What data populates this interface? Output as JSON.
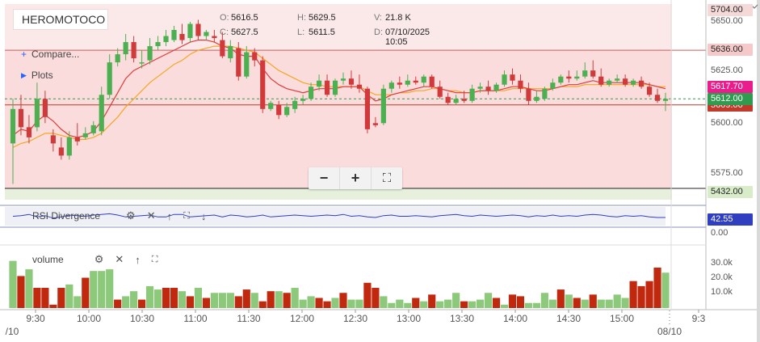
{
  "symbol": "HEROMOTOCO",
  "ohlc": {
    "o_label": "O:",
    "o": "5616.5",
    "h_label": "H:",
    "h": "5629.5",
    "v_label": "V:",
    "v": "21.8 K",
    "c_label": "C:",
    "c": "5627.5",
    "l_label": "L:",
    "l": "5611.5",
    "d_label": "D:",
    "d": "07/10/2025 10:05"
  },
  "menu": {
    "compare": "Compare...",
    "plots": "Plots"
  },
  "zoom": {
    "out": "−",
    "in": "+",
    "fit": "⛶"
  },
  "studies": {
    "rsi": "RSI Divergence",
    "rsi_value": "42.55",
    "rsi_zero": "0.00",
    "volume": "volume"
  },
  "price_axis": [
    "5650.00",
    "5625.00",
    "5600.00",
    "5575.00"
  ],
  "volume_axis": [
    "30.0k",
    "20.0k",
    "10.0k"
  ],
  "price_tags": {
    "high": "5704.00",
    "band_top": "5636.00",
    "ma": "5617.70",
    "last": "5612.00",
    "band_mid": "5609.00",
    "band_low": "5432.00"
  },
  "time_axis": [
    "9:30",
    "10:00",
    "10:30",
    "11:00",
    "11:30",
    "12:00",
    "12:30",
    "13:00",
    "13:30",
    "14:00",
    "14:30",
    "15:00",
    "9:3"
  ],
  "date_labels": {
    "left": "/10",
    "right": "08/10"
  },
  "colors": {
    "up": "#4caf50",
    "down": "#d03a3a",
    "band_fill": "#fbdcdc",
    "ma_red": "#e03a3a",
    "ma_orange": "#f5a623",
    "vol_up": "#8cc97a",
    "vol_down": "#c1290e",
    "rsi_line": "#2f3fbf",
    "ma_tag": "#e91e8c",
    "last_tag": "#2e9b4e"
  },
  "chart_data": {
    "type": "candlestick",
    "interval_minutes": 5,
    "y_range": [
      5568,
      5652
    ],
    "candles": [
      {
        "o": 5590,
        "h": 5612,
        "c": 5607,
        "l": 5570
      },
      {
        "o": 5607,
        "h": 5614,
        "c": 5598,
        "l": 5594
      },
      {
        "o": 5598,
        "h": 5604,
        "c": 5593,
        "l": 5590
      },
      {
        "o": 5598,
        "h": 5620,
        "c": 5612,
        "l": 5596
      },
      {
        "o": 5612,
        "h": 5616,
        "c": 5603,
        "l": 5600
      },
      {
        "o": 5594,
        "h": 5597,
        "c": 5590,
        "l": 5586
      },
      {
        "o": 5588,
        "h": 5593,
        "c": 5584,
        "l": 5582
      },
      {
        "o": 5584,
        "h": 5596,
        "c": 5593,
        "l": 5582
      },
      {
        "o": 5593,
        "h": 5600,
        "c": 5591,
        "l": 5589
      },
      {
        "o": 5593,
        "h": 5598,
        "c": 5595,
        "l": 5592
      },
      {
        "o": 5595,
        "h": 5601,
        "c": 5599,
        "l": 5594
      },
      {
        "o": 5596,
        "h": 5618,
        "c": 5614,
        "l": 5594
      },
      {
        "o": 5614,
        "h": 5634,
        "c": 5630,
        "l": 5612
      },
      {
        "o": 5630,
        "h": 5637,
        "c": 5634,
        "l": 5628
      },
      {
        "o": 5634,
        "h": 5644,
        "c": 5640,
        "l": 5631
      },
      {
        "o": 5640,
        "h": 5643,
        "c": 5632,
        "l": 5630
      },
      {
        "o": 5630,
        "h": 5636,
        "c": 5630,
        "l": 5627
      },
      {
        "o": 5631,
        "h": 5642,
        "c": 5638,
        "l": 5629
      },
      {
        "o": 5638,
        "h": 5643,
        "c": 5640,
        "l": 5636
      },
      {
        "o": 5640,
        "h": 5646,
        "c": 5643,
        "l": 5638
      },
      {
        "o": 5641,
        "h": 5648,
        "c": 5646,
        "l": 5640
      },
      {
        "o": 5644,
        "h": 5649,
        "c": 5641,
        "l": 5639
      },
      {
        "o": 5642,
        "h": 5650,
        "c": 5649,
        "l": 5640
      },
      {
        "o": 5649,
        "h": 5651,
        "c": 5643,
        "l": 5641
      },
      {
        "o": 5643,
        "h": 5646,
        "c": 5645,
        "l": 5641
      },
      {
        "o": 5643,
        "h": 5646,
        "c": 5642,
        "l": 5640
      },
      {
        "o": 5641,
        "h": 5645,
        "c": 5633,
        "l": 5632
      },
      {
        "o": 5632,
        "h": 5641,
        "c": 5638,
        "l": 5630
      },
      {
        "o": 5637,
        "h": 5640,
        "c": 5623,
        "l": 5621
      },
      {
        "o": 5623,
        "h": 5638,
        "c": 5635,
        "l": 5622
      },
      {
        "o": 5635,
        "h": 5637,
        "c": 5631,
        "l": 5628
      },
      {
        "o": 5631,
        "h": 5633,
        "c": 5607,
        "l": 5605
      },
      {
        "o": 5607,
        "h": 5611,
        "c": 5610,
        "l": 5606
      },
      {
        "o": 5609,
        "h": 5611,
        "c": 5604,
        "l": 5602
      },
      {
        "o": 5604,
        "h": 5610,
        "c": 5608,
        "l": 5603
      },
      {
        "o": 5607,
        "h": 5613,
        "c": 5611,
        "l": 5605
      },
      {
        "o": 5611,
        "h": 5614,
        "c": 5612,
        "l": 5609
      },
      {
        "o": 5612,
        "h": 5620,
        "c": 5618,
        "l": 5611
      },
      {
        "o": 5618,
        "h": 5624,
        "c": 5621,
        "l": 5616
      },
      {
        "o": 5621,
        "h": 5624,
        "c": 5614,
        "l": 5613
      },
      {
        "o": 5614,
        "h": 5622,
        "c": 5621,
        "l": 5613
      },
      {
        "o": 5621,
        "h": 5625,
        "c": 5622,
        "l": 5619
      },
      {
        "o": 5622,
        "h": 5626,
        "c": 5619,
        "l": 5617
      },
      {
        "o": 5619,
        "h": 5624,
        "c": 5617,
        "l": 5615
      },
      {
        "o": 5617,
        "h": 5618,
        "c": 5597,
        "l": 5595
      },
      {
        "o": 5600,
        "h": 5603,
        "c": 5599,
        "l": 5598
      },
      {
        "o": 5600,
        "h": 5619,
        "c": 5617,
        "l": 5599
      },
      {
        "o": 5617,
        "h": 5621,
        "c": 5620,
        "l": 5615
      },
      {
        "o": 5620,
        "h": 5623,
        "c": 5619,
        "l": 5617
      },
      {
        "o": 5619,
        "h": 5624,
        "c": 5621,
        "l": 5618
      },
      {
        "o": 5621,
        "h": 5623,
        "c": 5620,
        "l": 5619
      },
      {
        "o": 5620,
        "h": 5624,
        "c": 5623,
        "l": 5618
      },
      {
        "o": 5623,
        "h": 5624,
        "c": 5618,
        "l": 5617
      },
      {
        "o": 5618,
        "h": 5621,
        "c": 5613,
        "l": 5612
      },
      {
        "o": 5613,
        "h": 5615,
        "c": 5610,
        "l": 5609
      },
      {
        "o": 5610,
        "h": 5614,
        "c": 5612,
        "l": 5609
      },
      {
        "o": 5612,
        "h": 5616,
        "c": 5611,
        "l": 5610
      },
      {
        "o": 5611,
        "h": 5619,
        "c": 5617,
        "l": 5610
      },
      {
        "o": 5617,
        "h": 5620,
        "c": 5618,
        "l": 5615
      },
      {
        "o": 5618,
        "h": 5621,
        "c": 5616,
        "l": 5614
      },
      {
        "o": 5616,
        "h": 5620,
        "c": 5619,
        "l": 5615
      },
      {
        "o": 5619,
        "h": 5626,
        "c": 5624,
        "l": 5618
      },
      {
        "o": 5624,
        "h": 5627,
        "c": 5621,
        "l": 5619
      },
      {
        "o": 5621,
        "h": 5624,
        "c": 5617,
        "l": 5615
      },
      {
        "o": 5617,
        "h": 5620,
        "c": 5611,
        "l": 5609
      },
      {
        "o": 5611,
        "h": 5616,
        "c": 5613,
        "l": 5610
      },
      {
        "o": 5612,
        "h": 5618,
        "c": 5617,
        "l": 5611
      },
      {
        "o": 5617,
        "h": 5622,
        "c": 5620,
        "l": 5616
      },
      {
        "o": 5620,
        "h": 5624,
        "c": 5623,
        "l": 5619
      },
      {
        "o": 5623,
        "h": 5626,
        "c": 5622,
        "l": 5620
      },
      {
        "o": 5622,
        "h": 5626,
        "c": 5623,
        "l": 5621
      },
      {
        "o": 5623,
        "h": 5630,
        "c": 5626,
        "l": 5622
      },
      {
        "o": 5626,
        "h": 5631,
        "c": 5623,
        "l": 5622
      },
      {
        "o": 5623,
        "h": 5627,
        "c": 5619,
        "l": 5618
      },
      {
        "o": 5619,
        "h": 5622,
        "c": 5621,
        "l": 5618
      },
      {
        "o": 5621,
        "h": 5624,
        "c": 5622,
        "l": 5620
      },
      {
        "o": 5622,
        "h": 5624,
        "c": 5619,
        "l": 5618
      },
      {
        "o": 5619,
        "h": 5622,
        "c": 5621,
        "l": 5618
      },
      {
        "o": 5621,
        "h": 5623,
        "c": 5618,
        "l": 5617
      },
      {
        "o": 5618,
        "h": 5620,
        "c": 5614,
        "l": 5613
      },
      {
        "o": 5614,
        "h": 5617,
        "c": 5611,
        "l": 5610
      },
      {
        "o": 5611,
        "h": 5615,
        "c": 5612,
        "l": 5606
      }
    ],
    "ma_fast": [
      5594,
      5597,
      5596,
      5601,
      5604,
      5601,
      5597,
      5594,
      5593,
      5594,
      5596,
      5601,
      5608,
      5615,
      5622,
      5626,
      5628,
      5630,
      5632,
      5634,
      5636,
      5638,
      5640,
      5641,
      5641,
      5640,
      5638,
      5637,
      5634,
      5633,
      5633,
      5627,
      5622,
      5619,
      5617,
      5616,
      5615,
      5616,
      5617,
      5617,
      5617,
      5618,
      5618,
      5618,
      5614,
      5611,
      5612,
      5614,
      5615,
      5616,
      5617,
      5618,
      5618,
      5617,
      5616,
      5615,
      5615,
      5615,
      5616,
      5616,
      5616,
      5617,
      5618,
      5618,
      5617,
      5616,
      5616,
      5617,
      5618,
      5619,
      5619,
      5620,
      5621,
      5620,
      5620,
      5620,
      5620,
      5620,
      5620,
      5619,
      5618,
      5617
    ],
    "ma_slow": [
      5588,
      5590,
      5591,
      5593,
      5595,
      5595,
      5594,
      5593,
      5592,
      5592,
      5593,
      5595,
      5599,
      5603,
      5608,
      5612,
      5616,
      5620,
      5623,
      5626,
      5629,
      5631,
      5634,
      5636,
      5637,
      5638,
      5638,
      5638,
      5637,
      5636,
      5635,
      5632,
      5629,
      5626,
      5624,
      5622,
      5620,
      5619,
      5619,
      5618,
      5618,
      5618,
      5618,
      5618,
      5616,
      5614,
      5614,
      5614,
      5615,
      5615,
      5616,
      5616,
      5617,
      5617,
      5616,
      5616,
      5615,
      5615,
      5616,
      5616,
      5616,
      5616,
      5617,
      5617,
      5617,
      5617,
      5617,
      5617,
      5618,
      5618,
      5618,
      5619,
      5619,
      5619,
      5619,
      5619,
      5619,
      5619,
      5619,
      5619,
      5618,
      5618
    ],
    "band": {
      "top": 5636,
      "mid": 5609,
      "low": 5432
    },
    "last_price": 5612,
    "ma_value": 5617.7,
    "volume": [
      28,
      19,
      23,
      12,
      12,
      2,
      12,
      14,
      7,
      18,
      22,
      22,
      23,
      5,
      7,
      10,
      5,
      13,
      11,
      12,
      12,
      10,
      7,
      12,
      6,
      9,
      9,
      9,
      7,
      11,
      9,
      4,
      10,
      10,
      9,
      12,
      5,
      7,
      6,
      4,
      6,
      9,
      5,
      5,
      15,
      12,
      7,
      3,
      5,
      3,
      6,
      4,
      8,
      4,
      5,
      9,
      4,
      4,
      5,
      9,
      6,
      2,
      8,
      7,
      3,
      3,
      9,
      5,
      11,
      8,
      6,
      5,
      8,
      5,
      5,
      8,
      6,
      16,
      13,
      16,
      24,
      21
    ],
    "volume_dir": [
      "u",
      "d",
      "u",
      "d",
      "d",
      "d",
      "d",
      "u",
      "u",
      "d",
      "u",
      "u",
      "u",
      "d",
      "u",
      "u",
      "d",
      "u",
      "u",
      "d",
      "d",
      "u",
      "d",
      "u",
      "d",
      "u",
      "u",
      "u",
      "d",
      "d",
      "u",
      "d",
      "d",
      "u",
      "d",
      "u",
      "u",
      "u",
      "d",
      "d",
      "u",
      "d",
      "u",
      "u",
      "d",
      "d",
      "u",
      "u",
      "u",
      "u",
      "d",
      "u",
      "d",
      "u",
      "u",
      "u",
      "d",
      "u",
      "u",
      "u",
      "d",
      "u",
      "d",
      "d",
      "u",
      "u",
      "u",
      "u",
      "d",
      "u",
      "d",
      "u",
      "d",
      "u",
      "u",
      "u",
      "u",
      "d",
      "d",
      "d",
      "d",
      "u"
    ],
    "volume_ylim": [
      0,
      36
    ],
    "rsi": [
      45,
      46,
      48,
      44,
      46,
      42,
      44,
      47,
      46,
      45,
      47,
      48,
      49,
      47,
      44,
      45,
      46,
      47,
      44,
      44,
      48,
      48,
      44,
      45,
      46,
      47,
      44,
      47,
      46,
      44,
      45,
      47,
      44,
      45,
      46,
      47,
      46,
      45,
      46,
      47,
      46,
      48,
      45,
      46,
      44,
      43,
      46,
      47,
      45,
      45,
      46,
      45,
      44,
      46,
      47,
      48,
      46,
      45,
      47,
      46,
      45,
      46,
      47,
      46,
      44,
      46,
      45,
      47,
      45,
      46,
      45,
      47,
      48,
      47,
      45,
      44,
      46,
      45,
      46,
      44,
      43,
      43
    ]
  }
}
